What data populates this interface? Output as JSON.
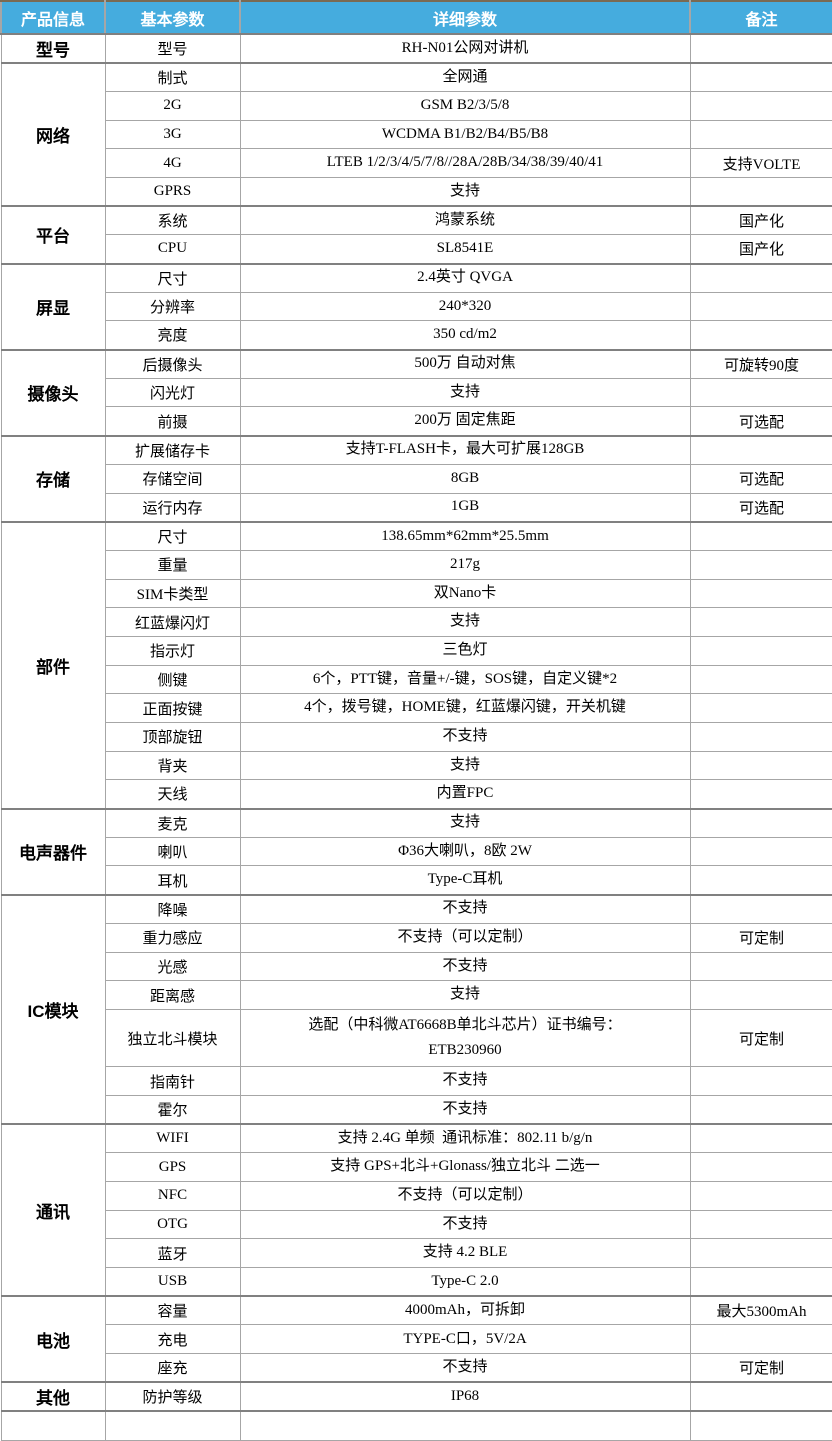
{
  "colors": {
    "header_bg": "#45ACDE",
    "header_text": "#FFFFFF",
    "border_light": "#A6A6A6",
    "border_group": "#808080",
    "body_text": "#000000"
  },
  "header": {
    "columns": [
      "产品信息",
      "基本参数",
      "详细参数",
      "备注"
    ]
  },
  "groups": [
    {
      "category": "型号",
      "rows": [
        {
          "param": "型号",
          "value": "RH-N01公网对讲机",
          "remark": ""
        }
      ]
    },
    {
      "category": "网络",
      "rows": [
        {
          "param": "制式",
          "value": "全网通",
          "remark": ""
        },
        {
          "param": "2G",
          "value": "GSM B2/3/5/8",
          "remark": ""
        },
        {
          "param": "3G",
          "value": "WCDMA B1/B2/B4/B5/B8",
          "remark": ""
        },
        {
          "param": "4G",
          "value": "LTEB 1/2/3/4/5/7/8//28A/28B/34/38/39/40/41",
          "remark": "支持VOLTE"
        },
        {
          "param": "GPRS",
          "value": "支持",
          "remark": ""
        }
      ]
    },
    {
      "category": "平台",
      "rows": [
        {
          "param": "系统",
          "value": "鸿蒙系统",
          "remark": "国产化"
        },
        {
          "param": "CPU",
          "value": "SL8541E",
          "remark": "国产化"
        }
      ]
    },
    {
      "category": "屏显",
      "rows": [
        {
          "param": "尺寸",
          "value": "2.4英寸 QVGA",
          "remark": ""
        },
        {
          "param": "分辨率",
          "value": "240*320",
          "remark": ""
        },
        {
          "param": "亮度",
          "value": "350 cd/m2",
          "remark": ""
        }
      ]
    },
    {
      "category": "摄像头",
      "rows": [
        {
          "param": "后摄像头",
          "value": "500万 自动对焦",
          "remark": "可旋转90度"
        },
        {
          "param": "闪光灯",
          "value": "支持",
          "remark": ""
        },
        {
          "param": "前摄",
          "value": "200万 固定焦距",
          "remark": "可选配"
        }
      ]
    },
    {
      "category": "存储",
      "rows": [
        {
          "param": "扩展储存卡",
          "value": "支持T-FLASH卡，最大可扩展128GB",
          "remark": ""
        },
        {
          "param": "存储空间",
          "value": "8GB",
          "remark": "可选配"
        },
        {
          "param": "运行内存",
          "value": "1GB",
          "remark": "可选配"
        }
      ]
    },
    {
      "category": "部件",
      "rows": [
        {
          "param": "尺寸",
          "value": "138.65mm*62mm*25.5mm",
          "remark": ""
        },
        {
          "param": "重量",
          "value": "217g",
          "remark": ""
        },
        {
          "param": "SIM卡类型",
          "value": "双Nano卡",
          "remark": ""
        },
        {
          "param": "红蓝爆闪灯",
          "value": "支持",
          "remark": ""
        },
        {
          "param": "指示灯",
          "value": "三色灯",
          "remark": ""
        },
        {
          "param": "侧键",
          "value": "6个，PTT键，音量+/-键，SOS键，自定义键*2",
          "remark": ""
        },
        {
          "param": "正面按键",
          "value": "4个，拨号键，HOME键，红蓝爆闪键，开关机键",
          "remark": ""
        },
        {
          "param": "顶部旋钮",
          "value": "不支持",
          "remark": ""
        },
        {
          "param": "背夹",
          "value": "支持",
          "remark": ""
        },
        {
          "param": "天线",
          "value": "内置FPC",
          "remark": ""
        }
      ]
    },
    {
      "category": "电声器件",
      "rows": [
        {
          "param": "麦克",
          "value": "支持",
          "remark": ""
        },
        {
          "param": "喇叭",
          "value": "Φ36大喇叭，8欧 2W",
          "remark": ""
        },
        {
          "param": "耳机",
          "value": "Type-C耳机",
          "remark": ""
        }
      ]
    },
    {
      "category": "IC模块",
      "rows": [
        {
          "param": "降噪",
          "value": "不支持",
          "remark": ""
        },
        {
          "param": "重力感应",
          "value": "不支持（可以定制）",
          "remark": "可定制"
        },
        {
          "param": "光感",
          "value": "不支持",
          "remark": ""
        },
        {
          "param": "距离感",
          "value": "支持",
          "remark": ""
        },
        {
          "param": "独立北斗模块",
          "value": "选配（中科微AT6668B单北斗芯片）证书编号：\nETB230960",
          "remark": "可定制",
          "two_line": true
        },
        {
          "param": "指南针",
          "value": "不支持",
          "remark": ""
        },
        {
          "param": "霍尔",
          "value": "不支持",
          "remark": ""
        }
      ]
    },
    {
      "category": "通讯",
      "rows": [
        {
          "param": "WIFI",
          "value": "支持 2.4G 单频  通讯标准：802.11 b/g/n",
          "remark": ""
        },
        {
          "param": "GPS",
          "value": "支持 GPS+北斗+Glonass/独立北斗 二选一",
          "remark": ""
        },
        {
          "param": "NFC",
          "value": "不支持（可以定制）",
          "remark": ""
        },
        {
          "param": "OTG",
          "value": "不支持",
          "remark": ""
        },
        {
          "param": "蓝牙",
          "value": "支持 4.2 BLE",
          "remark": ""
        },
        {
          "param": "USB",
          "value": "Type-C 2.0",
          "remark": ""
        }
      ]
    },
    {
      "category": "电池",
      "rows": [
        {
          "param": "容量",
          "value": "4000mAh，可拆卸",
          "remark": "最大5300mAh"
        },
        {
          "param": "充电",
          "value": "TYPE-C口，5V/2A",
          "remark": ""
        },
        {
          "param": "座充",
          "value": "不支持",
          "remark": "可定制"
        }
      ]
    },
    {
      "category": "其他",
      "rows": [
        {
          "param": "防护等级",
          "value": "IP68",
          "remark": ""
        }
      ]
    }
  ]
}
